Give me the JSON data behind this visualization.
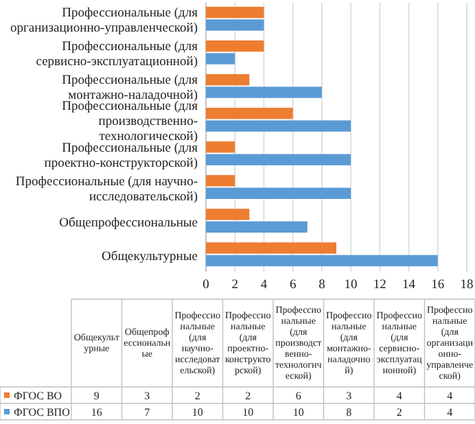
{
  "chart_data": [
    {
      "type": "bar",
      "orientation": "horizontal",
      "categories": [
        "Профессиональные (для организационно-управленческой)",
        "Профессиональные (для сервисно-эксплуатационной)",
        "Профессиональные (для монтажно-наладочной)",
        "Профессиональные (для производственно-технологической)",
        "Профессиональные (для проектно-конструкторской)",
        "Профессиональные (для научно-исследовательской)",
        "Общепрофессиональные",
        "Общекультурные"
      ],
      "series": [
        {
          "color": "#ed7d31",
          "values": [
            4,
            4,
            3,
            6,
            2,
            2,
            3,
            9
          ]
        },
        {
          "color": "#5b9bd5",
          "values": [
            4,
            2,
            8,
            10,
            10,
            10,
            7,
            16
          ]
        }
      ],
      "xlim": [
        0,
        18
      ],
      "xticks": [
        0,
        2,
        4,
        6,
        8,
        10,
        12,
        14,
        16,
        18
      ],
      "grid": "x"
    },
    {
      "type": "other",
      "categories": [
        "Общекультурные",
        "Общепрофессиональные",
        "Профессиональные (для научно-исследовательской)",
        "Профессиональные (для проектно-конструкторской)",
        "Профессиональные (для производственно-технологической)",
        "Профессиональные (для монтажно-наладочной)",
        "Профессиональные (для сервисно-эксплуатационной)",
        "Профессиональные (для организационно-управленческой)"
      ],
      "series": [
        {
          "name": "ФГОС ВО",
          "color": "#ed7d31",
          "values": [
            9,
            3,
            2,
            2,
            6,
            3,
            4,
            4
          ]
        },
        {
          "name": "ФГОС ВПО",
          "color": "#5b9bd5",
          "values": [
            16,
            7,
            10,
            10,
            10,
            8,
            2,
            4
          ]
        }
      ],
      "legend": "left",
      "data_labels": true
    }
  ]
}
